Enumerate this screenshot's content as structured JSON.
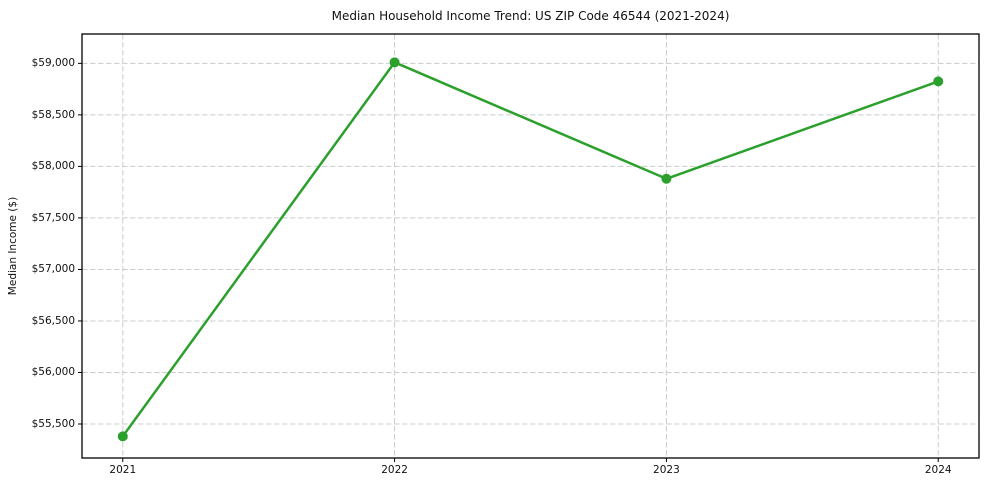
{
  "chart": {
    "title": "Median Household Income Trend: US ZIP Code 46544 (2021-2024)",
    "ylabel": "Median Income ($)"
  },
  "chart_data": {
    "type": "line",
    "title": "Median Household Income Trend: US ZIP Code 46544 (2021-2024)",
    "xlabel": "",
    "ylabel": "Median Income ($)",
    "x": [
      2021,
      2022,
      2023,
      2024
    ],
    "x_tick_labels": [
      "2021",
      "2022",
      "2023",
      "2024"
    ],
    "series": [
      {
        "name": "median-household-income",
        "values": [
          55380,
          59010,
          57880,
          58825
        ],
        "color": "#2ca02c",
        "marker": "circle",
        "marker_size": 5,
        "line_width": 2.5
      }
    ],
    "yticks": [
      55500,
      56000,
      56500,
      57000,
      57500,
      58000,
      58500,
      59000
    ],
    "ytick_labels": [
      "$55,500",
      "$56,000",
      "$56,500",
      "$57,000",
      "$57,500",
      "$58,000",
      "$58,500",
      "$59,000"
    ],
    "xlim": [
      2020.85,
      2024.15
    ],
    "ylim": [
      55170,
      59285
    ],
    "grid": true,
    "grid_color": "#cccccc",
    "grid_dash": "5.5,2.5",
    "frame_color": "#000000",
    "background_color": "#ffffff",
    "legend": "none"
  }
}
